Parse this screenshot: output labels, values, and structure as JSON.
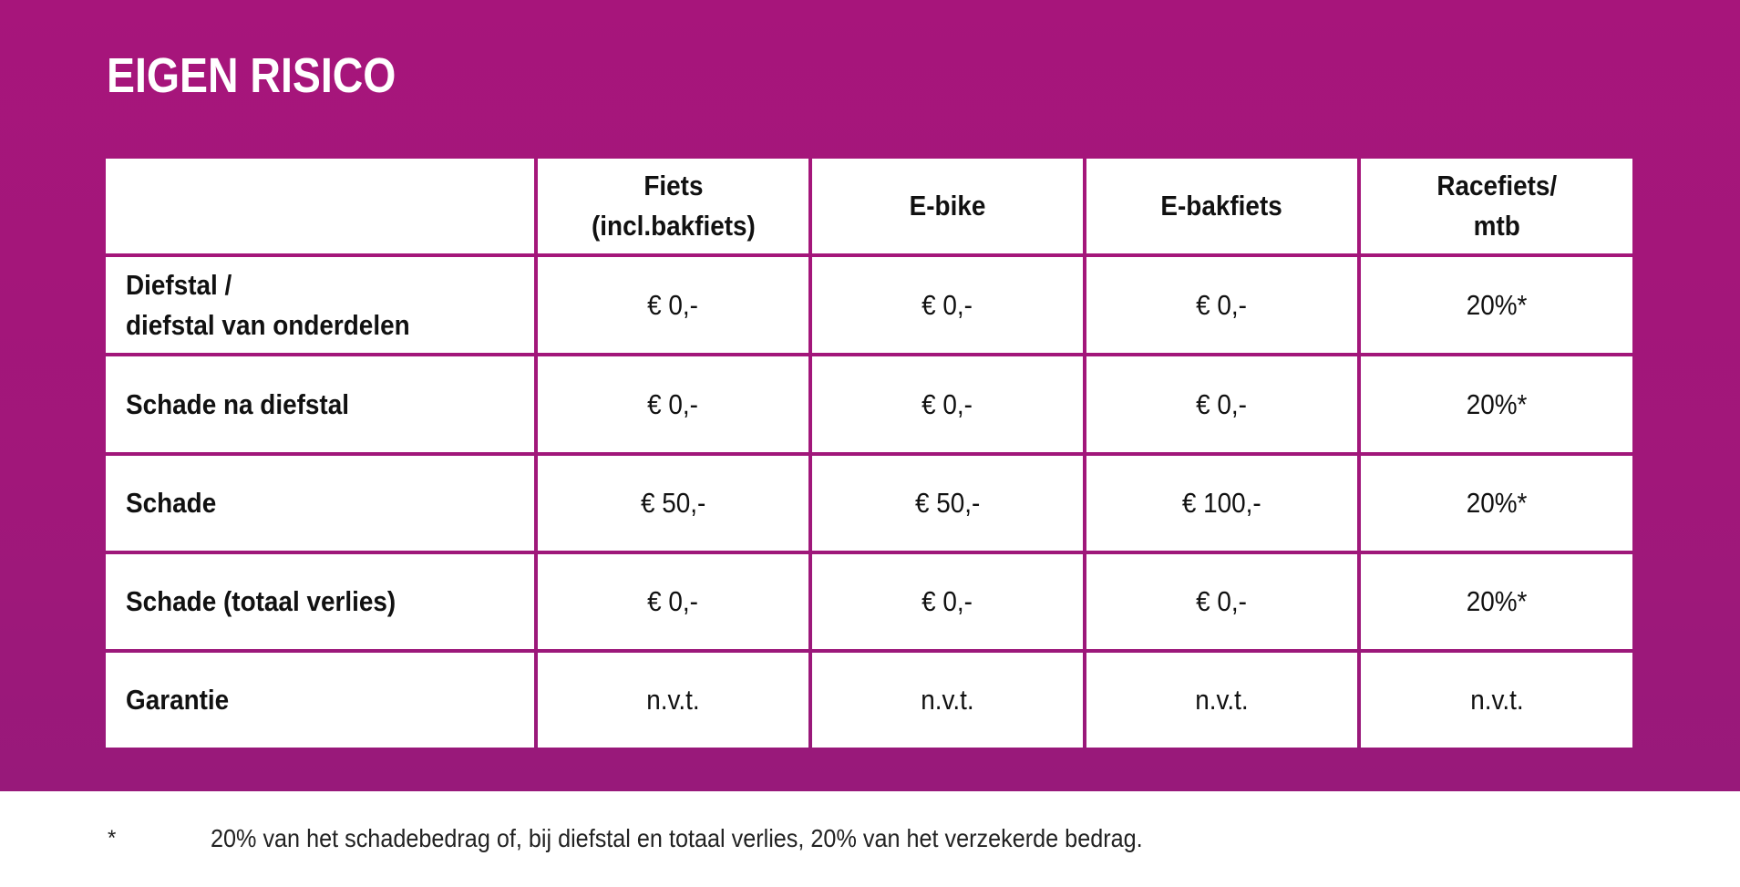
{
  "title": "EIGEN RISICO",
  "colors": {
    "background": "#a5157a",
    "cell": "#ffffff",
    "text": "#111111"
  },
  "table": {
    "headers": [
      "",
      "Fiets\n(incl.bakfiets)",
      "E-bike",
      "E-bakfiets",
      "Racefiets/\nmtb"
    ],
    "rows": [
      {
        "label": "Diefstal /\ndiefstal van onderdelen",
        "values": [
          "€ 0,-",
          "€ 0,-",
          "€ 0,-",
          "20%*"
        ]
      },
      {
        "label": "Schade na diefstal",
        "values": [
          "€ 0,-",
          "€ 0,-",
          "€ 0,-",
          "20%*"
        ]
      },
      {
        "label": "Schade",
        "values": [
          "€ 50,-",
          "€ 50,-",
          "€ 100,-",
          "20%*"
        ]
      },
      {
        "label": "Schade (totaal verlies)",
        "values": [
          "€ 0,-",
          "€ 0,-",
          "€ 0,-",
          "20%*"
        ]
      },
      {
        "label": "Garantie",
        "values": [
          "n.v.t.",
          "n.v.t.",
          "n.v.t.",
          "n.v.t."
        ]
      }
    ]
  },
  "footnote": {
    "marker": "*",
    "text": "20% van het schadebedrag of, bij diefstal en totaal verlies, 20% van het verzekerde bedrag."
  }
}
